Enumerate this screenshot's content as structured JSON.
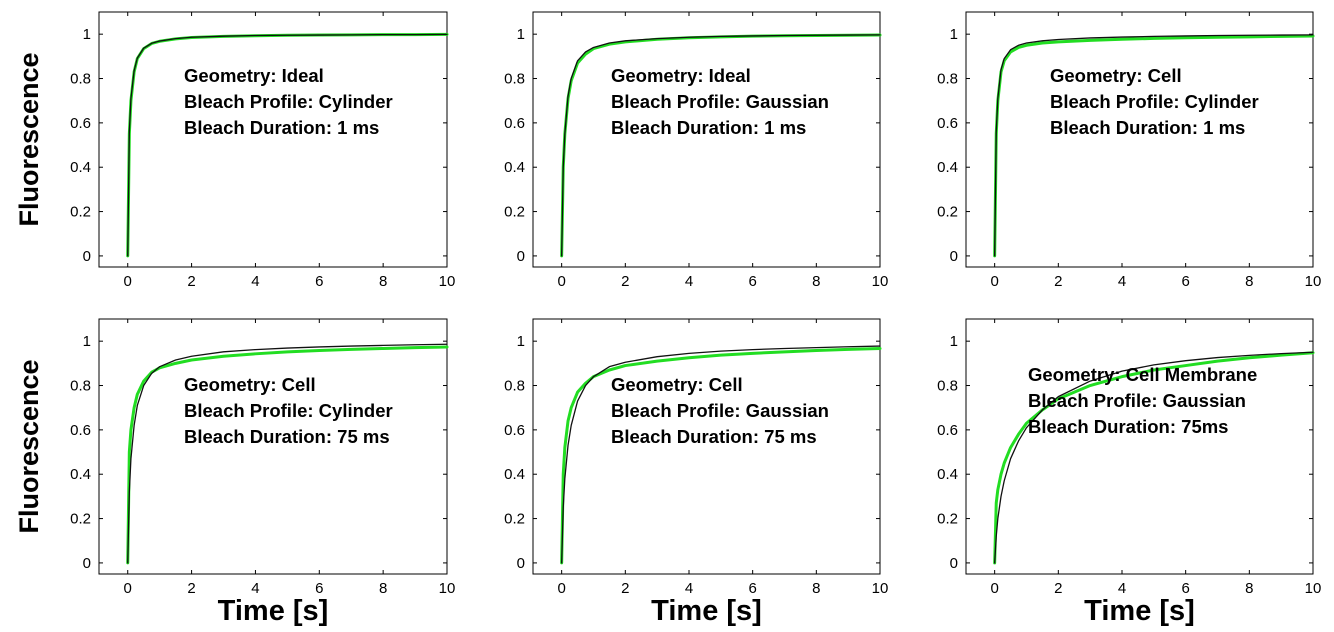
{
  "chart_data": [
    {
      "type": "line",
      "panel": "top-left",
      "ylabel": "Fluorescence",
      "xlabel": "",
      "xlim": [
        -0.9,
        10
      ],
      "ylim": [
        -0.05,
        1.1
      ],
      "xticks": [
        0,
        2,
        4,
        6,
        8,
        10
      ],
      "yticks": [
        0,
        0.2,
        0.4,
        0.6,
        0.8,
        1
      ],
      "annotations": [
        "Geometry: Ideal",
        "Bleach Profile: Cylinder",
        "Bleach Duration: 1 ms"
      ],
      "series": [
        {
          "color": "#22dd22",
          "x": [
            0,
            0.05,
            0.1,
            0.2,
            0.3,
            0.5,
            0.75,
            1,
            1.5,
            2,
            3,
            4,
            5,
            6,
            7,
            8,
            9,
            10
          ],
          "y": [
            0,
            0.55,
            0.7,
            0.83,
            0.89,
            0.935,
            0.958,
            0.968,
            0.979,
            0.985,
            0.99,
            0.993,
            0.995,
            0.996,
            0.997,
            0.998,
            0.998,
            0.999
          ]
        },
        {
          "color": "#111111",
          "x": [
            0,
            0.05,
            0.1,
            0.2,
            0.3,
            0.5,
            0.75,
            1,
            1.5,
            2,
            3,
            4,
            5,
            6,
            7,
            8,
            9,
            10
          ],
          "y": [
            0,
            0.56,
            0.71,
            0.835,
            0.892,
            0.937,
            0.959,
            0.969,
            0.98,
            0.986,
            0.991,
            0.994,
            0.995,
            0.996,
            0.997,
            0.998,
            0.998,
            0.999
          ]
        }
      ]
    },
    {
      "type": "line",
      "panel": "top-middle",
      "ylabel": "",
      "xlabel": "",
      "xlim": [
        -0.9,
        10
      ],
      "ylim": [
        -0.05,
        1.1
      ],
      "xticks": [
        0,
        2,
        4,
        6,
        8,
        10
      ],
      "yticks": [
        0,
        0.2,
        0.4,
        0.6,
        0.8,
        1
      ],
      "annotations": [
        "Geometry: Ideal",
        "Bleach Profile: Gaussian",
        "Bleach Duration: 1 ms"
      ],
      "series": [
        {
          "color": "#22dd22",
          "x": [
            0,
            0.05,
            0.1,
            0.2,
            0.3,
            0.5,
            0.75,
            1,
            1.5,
            2,
            3,
            4,
            5,
            6,
            7,
            8,
            9,
            10
          ],
          "y": [
            0,
            0.4,
            0.55,
            0.71,
            0.79,
            0.87,
            0.91,
            0.935,
            0.955,
            0.965,
            0.977,
            0.984,
            0.988,
            0.991,
            0.993,
            0.994,
            0.995,
            0.996
          ]
        },
        {
          "color": "#111111",
          "x": [
            0,
            0.05,
            0.1,
            0.2,
            0.3,
            0.5,
            0.75,
            1,
            1.5,
            2,
            3,
            4,
            5,
            6,
            7,
            8,
            9,
            10
          ],
          "y": [
            0,
            0.4,
            0.55,
            0.72,
            0.8,
            0.88,
            0.92,
            0.94,
            0.96,
            0.97,
            0.98,
            0.986,
            0.99,
            0.992,
            0.994,
            0.995,
            0.996,
            0.997
          ]
        }
      ]
    },
    {
      "type": "line",
      "panel": "top-right",
      "ylabel": "",
      "xlabel": "",
      "xlim": [
        -0.9,
        10
      ],
      "ylim": [
        -0.05,
        1.1
      ],
      "xticks": [
        0,
        2,
        4,
        6,
        8,
        10
      ],
      "yticks": [
        0,
        0.2,
        0.4,
        0.6,
        0.8,
        1
      ],
      "annotations": [
        "Geometry: Cell",
        "Bleach Profile: Cylinder",
        "Bleach Duration: 1 ms"
      ],
      "series": [
        {
          "color": "#22dd22",
          "x": [
            0,
            0.05,
            0.1,
            0.2,
            0.3,
            0.5,
            0.75,
            1,
            1.5,
            2,
            3,
            4,
            5,
            6,
            7,
            8,
            9,
            10
          ],
          "y": [
            0,
            0.55,
            0.7,
            0.83,
            0.88,
            0.92,
            0.94,
            0.95,
            0.96,
            0.965,
            0.972,
            0.977,
            0.981,
            0.984,
            0.986,
            0.988,
            0.99,
            0.992
          ]
        },
        {
          "color": "#111111",
          "x": [
            0,
            0.05,
            0.1,
            0.2,
            0.3,
            0.5,
            0.75,
            1,
            1.5,
            2,
            3,
            4,
            5,
            6,
            7,
            8,
            9,
            10
          ],
          "y": [
            0,
            0.56,
            0.71,
            0.84,
            0.89,
            0.93,
            0.95,
            0.96,
            0.97,
            0.976,
            0.983,
            0.987,
            0.99,
            0.992,
            0.994,
            0.995,
            0.996,
            0.997
          ]
        }
      ]
    },
    {
      "type": "line",
      "panel": "bottom-left",
      "ylabel": "Fluorescence",
      "xlabel": "Time [s]",
      "xlim": [
        -0.9,
        10
      ],
      "ylim": [
        -0.05,
        1.1
      ],
      "xticks": [
        0,
        2,
        4,
        6,
        8,
        10
      ],
      "yticks": [
        0,
        0.2,
        0.4,
        0.6,
        0.8,
        1
      ],
      "annotations": [
        "Geometry: Cell",
        "Bleach Profile: Cylinder",
        "Bleach Duration: 75 ms"
      ],
      "series": [
        {
          "color": "#22dd22",
          "x": [
            0,
            0.05,
            0.1,
            0.2,
            0.3,
            0.5,
            0.75,
            1,
            1.5,
            2,
            3,
            4,
            5,
            6,
            7,
            8,
            9,
            10
          ],
          "y": [
            0,
            0.5,
            0.6,
            0.7,
            0.76,
            0.82,
            0.86,
            0.88,
            0.9,
            0.915,
            0.932,
            0.943,
            0.952,
            0.958,
            0.963,
            0.967,
            0.971,
            0.974
          ]
        },
        {
          "color": "#111111",
          "x": [
            0,
            0.05,
            0.1,
            0.2,
            0.3,
            0.5,
            0.75,
            1,
            1.5,
            2,
            3,
            4,
            5,
            6,
            7,
            8,
            9,
            10
          ],
          "y": [
            0,
            0.32,
            0.47,
            0.62,
            0.71,
            0.8,
            0.855,
            0.885,
            0.915,
            0.932,
            0.952,
            0.962,
            0.969,
            0.974,
            0.978,
            0.981,
            0.984,
            0.986
          ]
        }
      ]
    },
    {
      "type": "line",
      "panel": "bottom-middle",
      "ylabel": "",
      "xlabel": "Time [s]",
      "xlim": [
        -0.9,
        10
      ],
      "ylim": [
        -0.05,
        1.1
      ],
      "xticks": [
        0,
        2,
        4,
        6,
        8,
        10
      ],
      "yticks": [
        0,
        0.2,
        0.4,
        0.6,
        0.8,
        1
      ],
      "annotations": [
        "Geometry: Cell",
        "Bleach Profile: Gaussian",
        "Bleach Duration: 75 ms"
      ],
      "series": [
        {
          "color": "#22dd22",
          "x": [
            0,
            0.05,
            0.1,
            0.2,
            0.3,
            0.5,
            0.75,
            1,
            1.5,
            2,
            3,
            4,
            5,
            6,
            7,
            8,
            9,
            10
          ],
          "y": [
            0,
            0.4,
            0.52,
            0.64,
            0.7,
            0.77,
            0.81,
            0.84,
            0.87,
            0.89,
            0.91,
            0.925,
            0.937,
            0.945,
            0.952,
            0.958,
            0.963,
            0.967
          ]
        },
        {
          "color": "#111111",
          "x": [
            0,
            0.05,
            0.1,
            0.2,
            0.3,
            0.5,
            0.75,
            1,
            1.5,
            2,
            3,
            4,
            5,
            6,
            7,
            8,
            9,
            10
          ],
          "y": [
            0,
            0.25,
            0.38,
            0.53,
            0.62,
            0.73,
            0.8,
            0.84,
            0.885,
            0.905,
            0.93,
            0.945,
            0.955,
            0.962,
            0.967,
            0.971,
            0.975,
            0.978
          ]
        }
      ]
    },
    {
      "type": "line",
      "panel": "bottom-right",
      "ylabel": "",
      "xlabel": "Time [s]",
      "xlim": [
        -0.9,
        10
      ],
      "ylim": [
        -0.05,
        1.1
      ],
      "xticks": [
        0,
        2,
        4,
        6,
        8,
        10
      ],
      "yticks": [
        0,
        0.2,
        0.4,
        0.6,
        0.8,
        1
      ],
      "annotations": [
        "Geometry: Cell Membrane",
        "Bleach Profile: Gaussian",
        "Bleach Duration: 75ms"
      ],
      "series": [
        {
          "color": "#22dd22",
          "x": [
            0,
            0.05,
            0.1,
            0.2,
            0.3,
            0.5,
            0.75,
            1,
            1.5,
            2,
            3,
            4,
            5,
            6,
            7,
            8,
            9,
            10
          ],
          "y": [
            0,
            0.27,
            0.33,
            0.4,
            0.45,
            0.52,
            0.58,
            0.63,
            0.69,
            0.74,
            0.8,
            0.84,
            0.87,
            0.89,
            0.91,
            0.925,
            0.937,
            0.948
          ]
        },
        {
          "color": "#111111",
          "x": [
            0,
            0.05,
            0.1,
            0.2,
            0.3,
            0.5,
            0.75,
            1,
            1.5,
            2,
            3,
            4,
            5,
            6,
            7,
            8,
            9,
            10
          ],
          "y": [
            0,
            0.12,
            0.2,
            0.3,
            0.37,
            0.47,
            0.55,
            0.61,
            0.69,
            0.75,
            0.82,
            0.865,
            0.893,
            0.912,
            0.926,
            0.936,
            0.944,
            0.95
          ]
        }
      ]
    }
  ]
}
